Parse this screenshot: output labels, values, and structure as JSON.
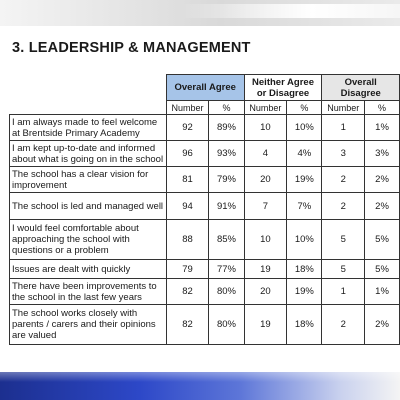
{
  "section_title": "3. LEADERSHIP & MANAGEMENT",
  "groups": [
    {
      "label": "Overall Agree",
      "color": "#a6c4e8"
    },
    {
      "label": "Neither Agree or Disagree",
      "color": "#ffffff"
    },
    {
      "label": "Overall Disagree",
      "color": "#e6e6e6"
    }
  ],
  "subheaders": [
    "Number",
    "%",
    "Number",
    "%",
    "Number",
    "%"
  ],
  "rows": [
    {
      "statement": "I am always made to feel welcome at Brentside Primary Academy",
      "agree_n": "92",
      "agree_p": "89%",
      "neither_n": "10",
      "neither_p": "10%",
      "disagree_n": "1",
      "disagree_p": "1%"
    },
    {
      "statement": "I am kept up-to-date and informed about what is going on in the school",
      "agree_n": "96",
      "agree_p": "93%",
      "neither_n": "4",
      "neither_p": "4%",
      "disagree_n": "3",
      "disagree_p": "3%"
    },
    {
      "statement": "The school has a clear vision for improvement",
      "agree_n": "81",
      "agree_p": "79%",
      "neither_n": "20",
      "neither_p": "19%",
      "disagree_n": "2",
      "disagree_p": "2%"
    },
    {
      "statement": "The school is led and managed well",
      "agree_n": "94",
      "agree_p": "91%",
      "neither_n": "7",
      "neither_p": "7%",
      "disagree_n": "2",
      "disagree_p": "2%"
    },
    {
      "statement": "I would feel comfortable about approaching the school with questions or a problem",
      "agree_n": "88",
      "agree_p": "85%",
      "neither_n": "10",
      "neither_p": "10%",
      "disagree_n": "5",
      "disagree_p": "5%"
    },
    {
      "statement": "Issues are dealt with quickly",
      "agree_n": "79",
      "agree_p": "77%",
      "neither_n": "19",
      "neither_p": "18%",
      "disagree_n": "5",
      "disagree_p": "5%"
    },
    {
      "statement": "There have been improvements to the school in the last few years",
      "agree_n": "82",
      "agree_p": "80%",
      "neither_n": "20",
      "neither_p": "19%",
      "disagree_n": "1",
      "disagree_p": "1%"
    },
    {
      "statement": "The school works closely with parents / carers and their opinions are valued",
      "agree_n": "82",
      "agree_p": "80%",
      "neither_n": "19",
      "neither_p": "18%",
      "disagree_n": "2",
      "disagree_p": "2%"
    }
  ]
}
